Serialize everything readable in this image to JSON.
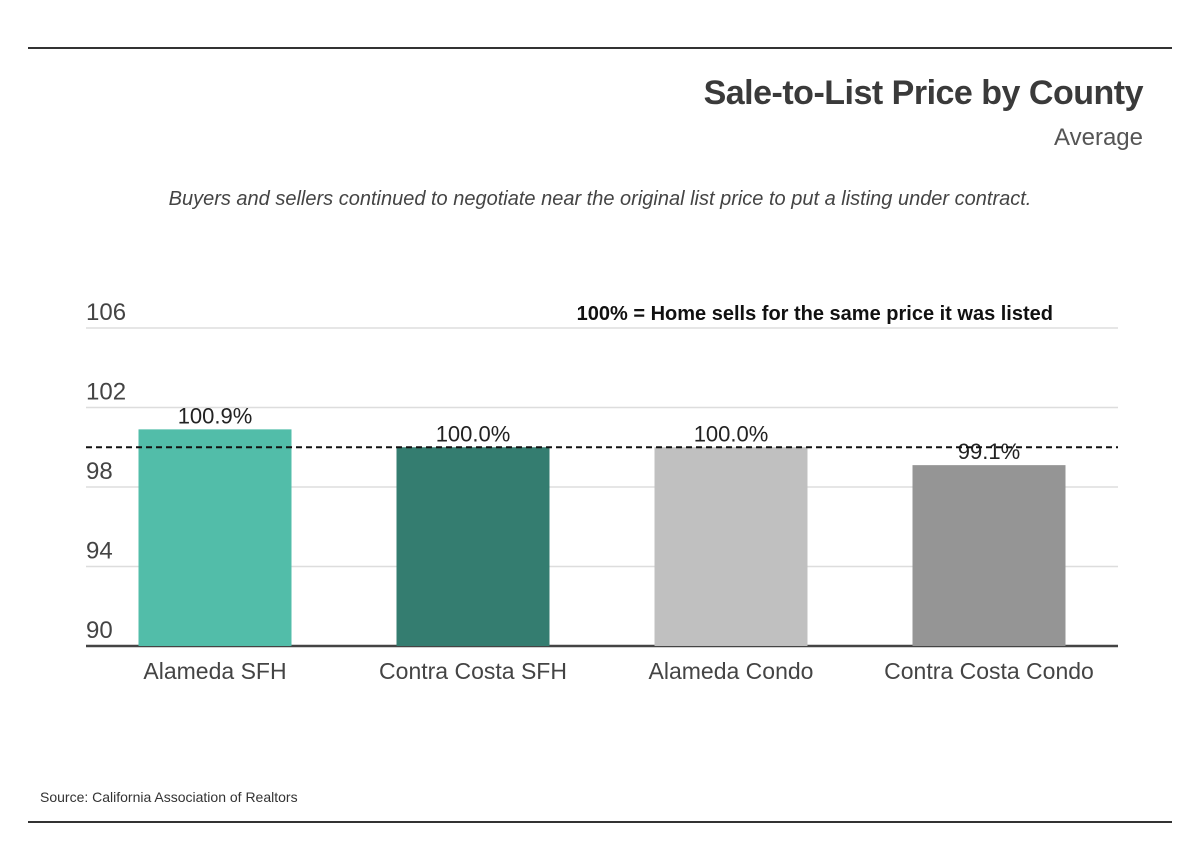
{
  "title": "Sale-to-List Price by County",
  "subtitle": "Average",
  "description": "Buyers and sellers continued to negotiate near the original list price to put a listing under contract.",
  "source": "Source:  California Association of Realtors",
  "chart_data": {
    "type": "bar",
    "title": "Sale-to-List Price by County",
    "categories": [
      "Alameda SFH",
      "Contra Costa SFH",
      "Alameda Condo",
      "Contra Costa Condo"
    ],
    "values": [
      100.9,
      100.0,
      100.0,
      99.1
    ],
    "data_labels": [
      "100.9%",
      "100.0%",
      "100.0%",
      "99.1%"
    ],
    "bar_colors": [
      "#52bda9",
      "#347d70",
      "#c0c0c0",
      "#959595"
    ],
    "y_ticks": [
      90,
      94,
      98,
      102,
      106
    ],
    "y_tick_labels": [
      "90",
      "94",
      "98",
      "102",
      "106"
    ],
    "ylim": [
      90,
      106
    ],
    "reference_line": {
      "value": 100,
      "style": "dashed",
      "label": "100% = Home sells for the same price it was listed"
    },
    "grid": true,
    "legend": "none"
  }
}
